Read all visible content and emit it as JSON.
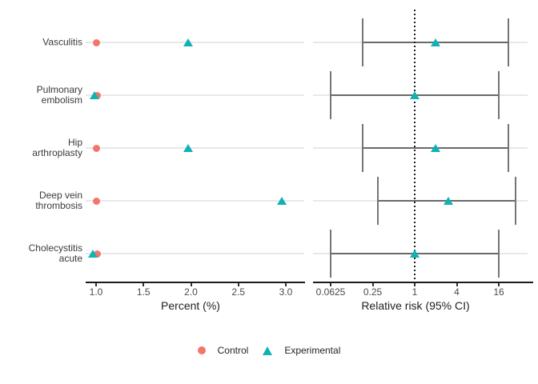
{
  "colors": {
    "control": "#F2766C",
    "experimental": "#10B2B5",
    "row_line": "#E8E8E8",
    "ci_line": "#696969",
    "axis_line": "#1A1A1A",
    "reference_line": "#1C1C1C",
    "text": "#3A3A3A"
  },
  "row_labels": [
    "Vasculitis",
    "Pulmonary\nembolism",
    "Hip\narthroplasty",
    "Deep vein\nthrombosis",
    "Cholecystitis\nacute"
  ],
  "chart_data": [
    {
      "type": "scatter",
      "panel": "percent",
      "xlabel": "Percent (%)",
      "x_scale": "linear",
      "x_range": [
        0.9,
        3.2
      ],
      "grid": "horizontal-row-lines",
      "legend_position": "bottom",
      "x_ticks": [
        {
          "label": "1.0",
          "value": 1.0
        },
        {
          "label": "1.5",
          "value": 1.5
        },
        {
          "label": "2.0",
          "value": 2.0
        },
        {
          "label": "2.5",
          "value": 2.5
        },
        {
          "label": "3.0",
          "value": 3.0
        }
      ],
      "categories": [
        "Vasculitis",
        "Pulmonary embolism",
        "Hip arthroplasty",
        "Deep vein thrombosis",
        "Cholecystitis acute"
      ],
      "series": [
        {
          "name": "Control",
          "marker": "circle",
          "color": "#F2766C",
          "values": [
            1.0,
            1.01,
            1.0,
            1.0,
            1.01
          ]
        },
        {
          "name": "Experimental",
          "marker": "triangle",
          "color": "#10B2B5",
          "values": [
            1.97,
            0.98,
            1.97,
            2.96,
            0.97
          ]
        }
      ]
    },
    {
      "type": "scatter",
      "panel": "relative-risk-forest",
      "xlabel": "Relative risk (95% CI)",
      "x_scale": "log",
      "x_range": [
        0.04,
        24
      ],
      "reference_line": 1,
      "grid": "horizontal-row-lines",
      "x_ticks": [
        {
          "label": "0.0625",
          "value": 0.0625
        },
        {
          "label": "0.25",
          "value": 0.25
        },
        {
          "label": "1",
          "value": 1
        },
        {
          "label": "4",
          "value": 4
        },
        {
          "label": "16",
          "value": 16
        }
      ],
      "categories": [
        "Vasculitis",
        "Pulmonary embolism",
        "Hip arthroplasty",
        "Deep vein thrombosis",
        "Cholecystitis acute"
      ],
      "series": [
        {
          "name": "Experimental",
          "marker": "triangle",
          "color": "#10B2B5",
          "values": [
            2.0,
            1.0,
            2.0,
            3.0,
            1.0
          ],
          "ci_low": [
            0.18,
            0.0625,
            0.18,
            0.3,
            0.0625
          ],
          "ci_high": [
            22,
            16,
            22,
            28,
            16
          ]
        }
      ]
    }
  ],
  "legend": {
    "items": [
      {
        "label": "Control",
        "marker": "circle",
        "color": "#F2766C"
      },
      {
        "label": "Experimental",
        "marker": "triangle",
        "color": "#10B2B5"
      }
    ]
  }
}
